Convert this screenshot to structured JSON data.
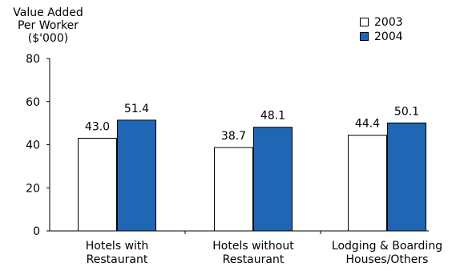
{
  "chart_data": {
    "type": "bar",
    "ylabel_lines": [
      "Value Added",
      "Per Worker",
      "($'000)"
    ],
    "categories": [
      [
        "Hotels with",
        "Restaurant"
      ],
      [
        "Hotels without",
        "Restaurant"
      ],
      [
        "Lodging & Boarding",
        "Houses/Others"
      ]
    ],
    "series": [
      {
        "name": "2003",
        "values": [
          43.0,
          38.7,
          44.4
        ],
        "color": "#ffffff",
        "stroke": "#000000"
      },
      {
        "name": "2004",
        "values": [
          51.4,
          48.1,
          50.1
        ],
        "color": "#1f66b5",
        "stroke": "#000000"
      }
    ],
    "data_labels": [
      [
        "43.0",
        "38.7",
        "44.4"
      ],
      [
        "51.4",
        "48.1",
        "50.1"
      ]
    ],
    "ylim": [
      0,
      80
    ],
    "yticks": [
      "0",
      "20",
      "40",
      "60",
      "80"
    ],
    "ytick_values": [
      0,
      20,
      40,
      60,
      80
    ],
    "grid": false,
    "legend_position": "top-right"
  }
}
